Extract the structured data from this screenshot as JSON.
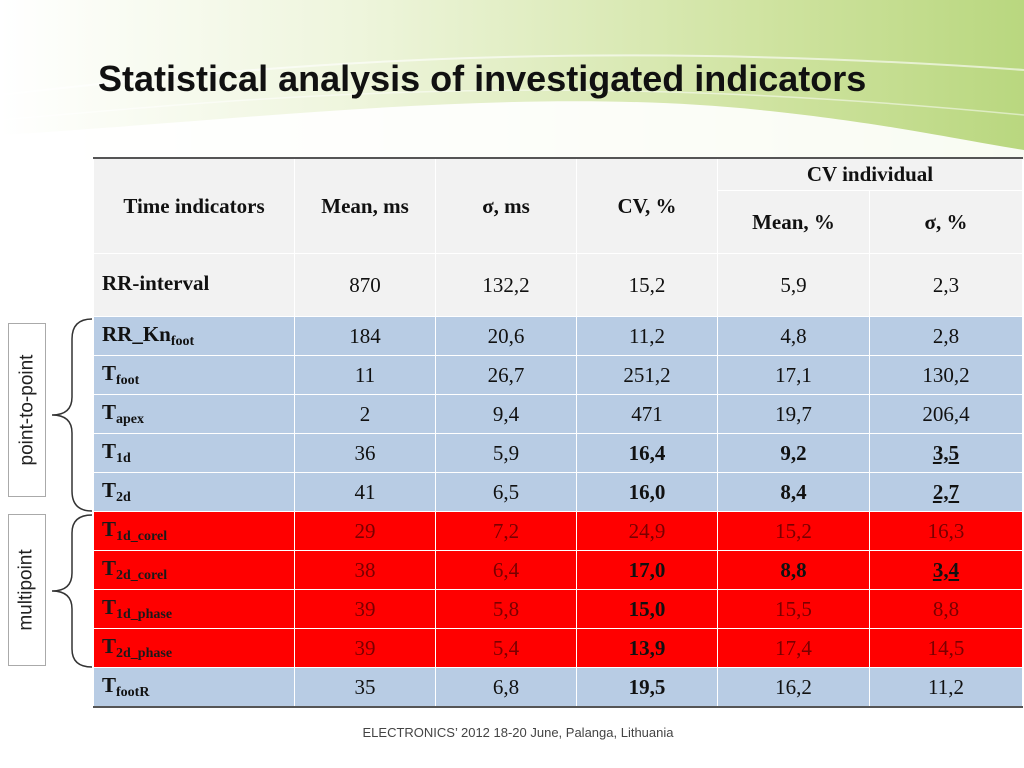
{
  "title": "Statistical analysis of investigated indicators",
  "footer": "ELECTRONICS’ 2012 18-20 June, Palanga, Lithuania",
  "side_labels": {
    "point_to_point": "point-to-point",
    "multipoint": "multipoint"
  },
  "table": {
    "headers": {
      "time_indicators": "Time indicators",
      "mean_ms": "Mean, ms",
      "sigma_ms": "σ, ms",
      "cv_pct": "CV, %",
      "cv_individual": "CV individual",
      "mean_pct": "Mean, %",
      "sigma_pct": "σ, %"
    },
    "rows": [
      {
        "name": "RR-interval",
        "sub": "",
        "mean": "870",
        "sigma": "132,2",
        "cv": "15,2",
        "cv_mean": "5,9",
        "cv_sigma": "2,3"
      },
      {
        "name": "RR_Kn",
        "sub": "foot",
        "mean": "184",
        "sigma": "20,6",
        "cv": "11,2",
        "cv_mean": "4,8",
        "cv_sigma": "2,8"
      },
      {
        "name": "T",
        "sub": "foot",
        "mean": "11",
        "sigma": "26,7",
        "cv": "251,2",
        "cv_mean": "17,1",
        "cv_sigma": "130,2"
      },
      {
        "name": "T",
        "sub": "apex",
        "mean": "2",
        "sigma": "9,4",
        "cv": "471",
        "cv_mean": "19,7",
        "cv_sigma": "206,4"
      },
      {
        "name": "T",
        "sub": "1d",
        "mean": "36",
        "sigma": "5,9",
        "cv": "16,4",
        "cv_mean": "9,2",
        "cv_sigma": "3,5"
      },
      {
        "name": "T",
        "sub": "2d",
        "mean": "41",
        "sigma": "6,5",
        "cv": "16,0",
        "cv_mean": "8,4",
        "cv_sigma": "2,7"
      },
      {
        "name": "T",
        "sub": "1d_corel",
        "mean": "29",
        "sigma": "7,2",
        "cv": "24,9",
        "cv_mean": "15,2",
        "cv_sigma": "16,3"
      },
      {
        "name": "T",
        "sub": "2d_corel",
        "mean": "38",
        "sigma": "6,4",
        "cv": "17,0",
        "cv_mean": "8,8",
        "cv_sigma": "3,4"
      },
      {
        "name": "T",
        "sub": "1d_phase",
        "mean": "39",
        "sigma": "5,8",
        "cv": "15,0",
        "cv_mean": "15,5",
        "cv_sigma": "8,8"
      },
      {
        "name": "T",
        "sub": "2d_phase",
        "mean": "39",
        "sigma": "5,4",
        "cv": "13,9",
        "cv_mean": "17,4",
        "cv_sigma": "14,5"
      },
      {
        "name": "T",
        "sub": "footR",
        "mean": "35",
        "sigma": "6,8",
        "cv": "19,5",
        "cv_mean": "16,2",
        "cv_sigma": "11,2"
      }
    ]
  },
  "colors": {
    "blue_row": "#b8cce4",
    "red_row": "#ff0000",
    "header_bg": "#f2f2f2",
    "banner_green": "#c4dc8e"
  }
}
